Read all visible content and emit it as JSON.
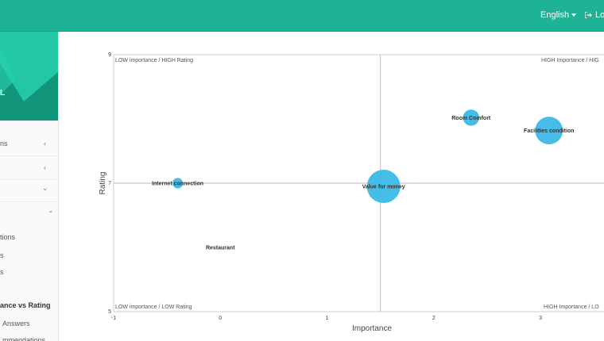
{
  "topbar": {
    "language": "English",
    "logout_label": "Lo"
  },
  "sidebar": {
    "brand_letter": "L",
    "items": [
      {
        "label": "ns",
        "chevron": "‹"
      },
      {
        "label": "",
        "chevron": "‹"
      },
      {
        "label": "",
        "chevron": "⌄"
      },
      {
        "label": "",
        "chevron": "⌄"
      }
    ],
    "sub_items": [
      {
        "label": "tions",
        "active": false
      },
      {
        "label": "s",
        "active": false
      },
      {
        "label": "s",
        "active": false
      },
      {
        "label": "ance vs Rating",
        "active": true
      },
      {
        "label": "Answers",
        "active": false
      },
      {
        "label": "mmendations",
        "active": false
      }
    ]
  },
  "colors": {
    "topbar": "#1db394",
    "bubble": "#3bb9e5"
  },
  "chart_data": {
    "type": "scatter",
    "xlabel": "Importance",
    "ylabel": "Rating",
    "xlim": [
      -1,
      3.7
    ],
    "ylim": [
      5,
      9
    ],
    "x_ticks": [
      "-1",
      "0",
      "1",
      "2",
      "3"
    ],
    "y_ticks": [
      "9",
      "7",
      "5"
    ],
    "quadrant_lines": {
      "x": 1.5,
      "y": 7
    },
    "quadrants": {
      "top_left": "LOW importance / HIGH Rating",
      "top_right": "HIGH Importance / HIG",
      "bottom_left": "LOW importance / LOW Rating",
      "bottom_right": "HIGH Importance / LO"
    },
    "points": [
      {
        "label": "Internet connection",
        "x": -0.4,
        "y": 7.0,
        "size": 1
      },
      {
        "label": "Value for money",
        "x": 1.53,
        "y": 6.95,
        "size": 5
      },
      {
        "label": "Room Comfort",
        "x": 2.35,
        "y": 8.02,
        "size": 2
      },
      {
        "label": "Facilities condition",
        "x": 3.08,
        "y": 7.82,
        "size": 4
      },
      {
        "label": "Restaurant",
        "x": 0.0,
        "y": 6.0,
        "size": 0
      }
    ]
  }
}
